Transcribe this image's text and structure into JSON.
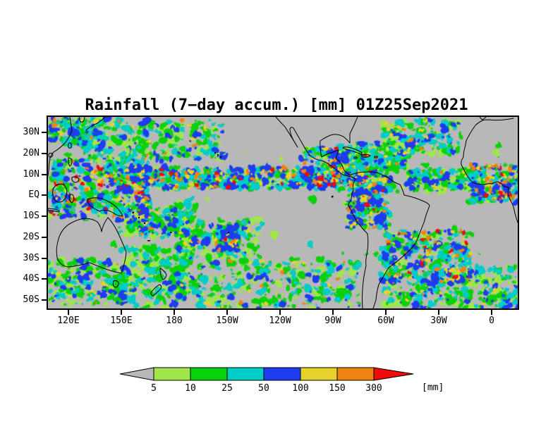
{
  "title": "Rainfall (7−day accum.) [mm] 01Z25Sep2021",
  "map": {
    "background": "#b8b8b8",
    "lat_labels": [
      "30N",
      "20N",
      "10N",
      "EQ",
      "10S",
      "20S",
      "30S",
      "40S",
      "50S"
    ],
    "lat_ticks_deg": [
      30,
      20,
      10,
      0,
      -10,
      -20,
      -30,
      -40,
      -50
    ],
    "lon_labels": [
      "120E",
      "150E",
      "180",
      "150W",
      "120W",
      "90W",
      "60W",
      "30W",
      "0"
    ],
    "lon_ticks_deg": [
      120,
      150,
      180,
      210,
      240,
      270,
      300,
      330,
      360
    ],
    "lon_domain": [
      108.4,
      374.8
    ],
    "lat_domain": [
      37.4,
      -54.0
    ]
  },
  "palette": {
    "light": "#a0e64b",
    "green": "#0ad20a",
    "cyan": "#00ccc8",
    "blue": "#1e3cf0",
    "yellow": "#e6d22d",
    "orange": "#f08214",
    "red": "#f00a0a"
  },
  "legend": {
    "unit": "[mm]",
    "labels": [
      "5",
      "10",
      "25",
      "50",
      "100",
      "150",
      "300"
    ],
    "segments": [
      {
        "name": "under-5",
        "color": "#b8b8b8",
        "arrow": "left"
      },
      {
        "name": "5-10",
        "color": "#a0e64b"
      },
      {
        "name": "10-25",
        "color": "#0ad20a"
      },
      {
        "name": "25-50",
        "color": "#00ccc8"
      },
      {
        "name": "50-100",
        "color": "#1e3cf0"
      },
      {
        "name": "100-150",
        "color": "#e6d22d"
      },
      {
        "name": "150-300",
        "color": "#f08214"
      },
      {
        "name": "over-300",
        "color": "#f00a0a",
        "arrow": "right"
      }
    ]
  },
  "precip_features": [
    {
      "name": "west-pacific-maritime-continent",
      "lon": [
        110,
        165
      ],
      "lat": [
        -10,
        18
      ],
      "intensity": 3,
      "blobs": 430
    },
    {
      "name": "pacific-itcz",
      "lon": [
        148,
        275
      ],
      "lat": [
        3,
        13
      ],
      "intensity": 3,
      "blobs": 540
    },
    {
      "name": "north-pacific-subtropics",
      "lon": [
        128,
        208
      ],
      "lat": [
        17,
        36
      ],
      "intensity": 2,
      "blobs": 300
    },
    {
      "name": "spcz-west",
      "lon": [
        148,
        192
      ],
      "lat": [
        -19,
        -4
      ],
      "intensity": 2,
      "blobs": 220
    },
    {
      "name": "spcz-east",
      "lon": [
        183,
        228
      ],
      "lat": [
        -30,
        -12
      ],
      "intensity": 2,
      "blobs": 190
    },
    {
      "name": "south-pacific-storm-track",
      "lon": [
        150,
        285
      ],
      "lat": [
        -54,
        -31
      ],
      "intensity": 2,
      "blobs": 470
    },
    {
      "name": "australia-south-indian",
      "lon": [
        108,
        152
      ],
      "lat": [
        -52,
        -30
      ],
      "intensity": 2,
      "blobs": 210
    },
    {
      "name": "tasman-new-zealand",
      "lon": [
        150,
        188
      ],
      "lat": [
        -47,
        -24
      ],
      "intensity": 1,
      "blobs": 150
    },
    {
      "name": "south-pacific-cyclone-150w",
      "lon": [
        203,
        216
      ],
      "lat": [
        -27,
        -16
      ],
      "intensity": 3,
      "blobs": 100
    },
    {
      "name": "central-america-east-pacific",
      "lon": [
        252,
        288
      ],
      "lat": [
        4,
        23
      ],
      "intensity": 3,
      "blobs": 230
    },
    {
      "name": "northwest-south-america",
      "lon": [
        278,
        302
      ],
      "lat": [
        -16,
        12
      ],
      "intensity": 3,
      "blobs": 270
    },
    {
      "name": "southeast-brazil-atlantic",
      "lon": [
        298,
        348
      ],
      "lat": [
        -42,
        -17
      ],
      "intensity": 3,
      "blobs": 330
    },
    {
      "name": "atlantic-itcz",
      "lon": [
        312,
        354
      ],
      "lat": [
        2,
        12
      ],
      "intensity": 2,
      "blobs": 170
    },
    {
      "name": "west-africa-itcz",
      "lon": [
        348,
        375
      ],
      "lat": [
        -3,
        15
      ],
      "intensity": 3,
      "blobs": 210
    },
    {
      "name": "north-atlantic-subtropics",
      "lon": [
        298,
        342
      ],
      "lat": [
        20,
        36
      ],
      "intensity": 2,
      "blobs": 180
    },
    {
      "name": "caribbean",
      "lon": [
        283,
        312
      ],
      "lat": [
        12,
        25
      ],
      "intensity": 2,
      "blobs": 150
    },
    {
      "name": "south-atlantic-storm-track",
      "lon": [
        298,
        375
      ],
      "lat": [
        -54,
        -34
      ],
      "intensity": 2,
      "blobs": 300
    },
    {
      "name": "east-asia-coast",
      "lon": [
        110,
        138
      ],
      "lat": [
        24,
        37
      ],
      "intensity": 2,
      "blobs": 150
    },
    {
      "name": "isolated-showers",
      "lon": [
        108,
        375
      ],
      "lat": [
        -30,
        25
      ],
      "intensity": 1,
      "blobs": 70
    }
  ]
}
